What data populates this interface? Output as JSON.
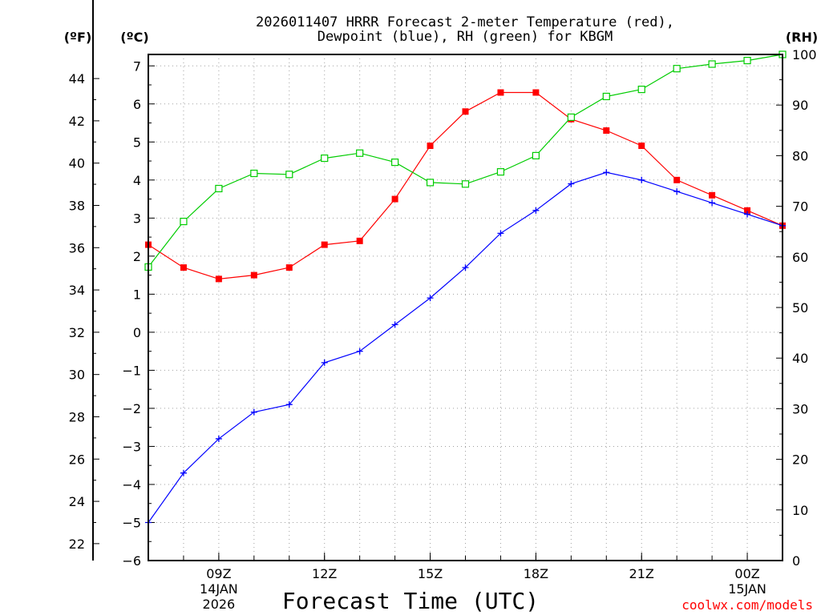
{
  "chart_data": {
    "type": "line",
    "title_lines": [
      "2026011407 HRRR Forecast 2-meter Temperature (red),",
      "Dewpoint (blue), RH (green) for KBGM"
    ],
    "xlabel": "Forecast Time (UTC)",
    "credit": "coolwx.com/models",
    "units": {
      "fahrenheit": "(ºF)",
      "celsius": "(ºC)",
      "rh": "(RH)"
    },
    "x": [
      7,
      8,
      9,
      10,
      11,
      12,
      13,
      14,
      15,
      16,
      17,
      18,
      19,
      20,
      21,
      22,
      23,
      24,
      25
    ],
    "xlim": [
      7,
      25
    ],
    "x_ticks": [
      {
        "x": 9,
        "label": "09Z",
        "sub1": "14JAN",
        "sub2": "2026"
      },
      {
        "x": 12,
        "label": "12Z"
      },
      {
        "x": 15,
        "label": "15Z"
      },
      {
        "x": 18,
        "label": "18Z"
      },
      {
        "x": 21,
        "label": "21Z"
      },
      {
        "x": 24,
        "label": "00Z",
        "sub1": "15JAN"
      }
    ],
    "ylim_c": [
      -6,
      7.3
    ],
    "y_ticks_c": [
      -6,
      -5,
      -4,
      -3,
      -2,
      -1,
      0,
      1,
      2,
      3,
      4,
      5,
      6,
      7
    ],
    "y_ticks_f": [
      22,
      24,
      26,
      28,
      30,
      32,
      34,
      36,
      38,
      40,
      42,
      44
    ],
    "ylim_rh": [
      0,
      100
    ],
    "y_ticks_rh": [
      0,
      10,
      20,
      30,
      40,
      50,
      60,
      70,
      80,
      90,
      100
    ],
    "colors": {
      "temperature": "#ff0000",
      "dewpoint": "#0000ff",
      "rh": "#00cc00"
    },
    "series": [
      {
        "name": "Temperature",
        "units": "C",
        "axis": "celsius",
        "color": "#ff0000",
        "marker": "filled-square",
        "values": [
          2.3,
          1.7,
          1.4,
          1.5,
          1.7,
          2.3,
          2.4,
          3.5,
          4.9,
          5.8,
          6.3,
          6.3,
          5.6,
          5.3,
          4.9,
          4.0,
          3.6,
          3.2,
          2.8
        ]
      },
      {
        "name": "Dewpoint",
        "units": "C",
        "axis": "celsius",
        "color": "#0000ff",
        "marker": "plus",
        "values": [
          -5.0,
          -3.7,
          -2.8,
          -2.1,
          -1.9,
          -0.8,
          -0.5,
          0.2,
          0.9,
          1.7,
          2.6,
          3.2,
          3.9,
          4.2,
          4.0,
          3.7,
          3.4,
          3.1,
          2.8
        ]
      },
      {
        "name": "RH",
        "units": "%",
        "axis": "rh",
        "color": "#00cc00",
        "marker": "open-square",
        "values": [
          58,
          67,
          73.5,
          76.5,
          76.3,
          79.5,
          80.5,
          78.7,
          74.7,
          74.4,
          76.8,
          80,
          87.6,
          91.7,
          93.1,
          97.2,
          98.1,
          98.8,
          100
        ]
      }
    ]
  }
}
